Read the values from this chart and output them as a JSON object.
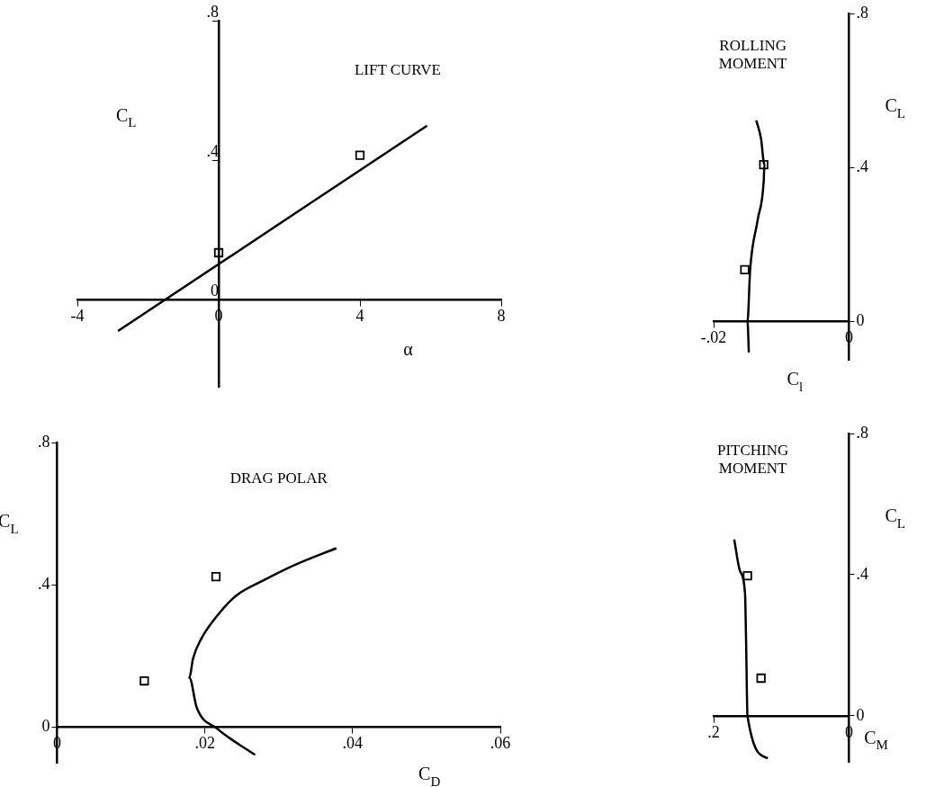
{
  "chart_data": [
    {
      "type": "line",
      "title": "LIFT CURVE",
      "xlabel": "α",
      "ylabel": "C$_{L}$",
      "xlim": [
        -4,
        8
      ],
      "ylim": [
        -0.25,
        0.8
      ],
      "xticks": [
        -4,
        0,
        4,
        8
      ],
      "yticks": [
        {
          "value": 0,
          "label": "0"
        },
        {
          "value": 0.4,
          "label": ".4"
        },
        {
          "value": 0.8,
          "label": ".8"
        }
      ],
      "grid": false,
      "legend": false,
      "series": [
        {
          "type": "line",
          "color": "#000000",
          "marker": "none",
          "x": [
            -2.85,
            5.9
          ],
          "values": [
            -0.09,
            0.5
          ]
        },
        {
          "type": "scatter",
          "color": "#000000",
          "marker": "square",
          "x": [
            0,
            4
          ],
          "values": [
            0.135,
            0.415
          ]
        }
      ]
    },
    {
      "type": "line",
      "title": "DRAG POLAR",
      "xlabel": "C$_{D}$",
      "ylabel": "C$_{L}$",
      "xlim": [
        0,
        0.06
      ],
      "ylim": [
        -0.1,
        0.8
      ],
      "xticks": [
        {
          "value": 0,
          "label": "0"
        },
        {
          "value": 0.02,
          "label": ".02"
        },
        {
          "value": 0.04,
          "label": ".04"
        },
        {
          "value": 0.06,
          "label": ".06"
        }
      ],
      "yticks": [
        {
          "value": 0,
          "label": "0"
        },
        {
          "value": 0.4,
          "label": ".4"
        },
        {
          "value": 0.8,
          "label": ".8"
        }
      ],
      "grid": false,
      "legend": false,
      "series": [
        {
          "type": "line",
          "color": "#000000",
          "marker": "none",
          "x": [
            0.0268,
            0.0217,
            0.0189,
            0.0179,
            0.0184,
            0.0195,
            0.0217,
            0.0242,
            0.0279,
            0.0323,
            0.0378
          ],
          "values": [
            -0.078,
            -0.005,
            0.055,
            0.139,
            0.193,
            0.248,
            0.314,
            0.369,
            0.412,
            0.457,
            0.503
          ]
        },
        {
          "type": "scatter",
          "color": "#000000",
          "marker": "square",
          "x": [
            0.0118,
            0.0215
          ],
          "values": [
            0.13,
            0.423
          ]
        }
      ]
    },
    {
      "type": "line",
      "title": "ROLLING MOMENT",
      "xlabel": "C$_{l}$",
      "ylabel": "C$_{L}$",
      "xlim": [
        -0.02,
        0
      ],
      "ylim": [
        -0.1,
        0.8
      ],
      "xticks": [
        {
          "value": -0.02,
          "label": "-.02"
        },
        {
          "value": 0,
          "label": "0"
        }
      ],
      "yticks": [
        {
          "value": 0,
          "label": "0"
        },
        {
          "value": 0.4,
          "label": ".4"
        },
        {
          "value": 0.8,
          "label": ".8"
        }
      ],
      "grid": false,
      "legend": false,
      "series": [
        {
          "type": "line",
          "color": "#000000",
          "marker": "none",
          "x": [
            -0.0137,
            -0.013,
            -0.0125,
            -0.0126,
            -0.0135,
            -0.0146,
            -0.015,
            -0.0148
          ],
          "values": [
            0.522,
            0.475,
            0.407,
            0.365,
            0.263,
            0.136,
            0,
            -0.081
          ]
        },
        {
          "type": "scatter",
          "color": "#000000",
          "marker": "square",
          "x": [
            -0.0154,
            -0.0126
          ],
          "values": [
            0.134,
            0.407
          ]
        }
      ]
    },
    {
      "type": "line",
      "title": "PITCHING MOMENT",
      "xlabel": "C$_{M}$",
      "ylabel": "C$_{L}$",
      "xlim": [
        0.2,
        0
      ],
      "ylim": [
        -0.13,
        0.8
      ],
      "xticks": [
        {
          "value": 0.2,
          "label": ".2"
        },
        {
          "value": 0,
          "label": "0"
        }
      ],
      "yticks": [
        {
          "value": 0,
          "label": "0"
        },
        {
          "value": 0.4,
          "label": ".4"
        },
        {
          "value": 0.8,
          "label": ".8"
        }
      ],
      "grid": false,
      "legend": false,
      "series": [
        {
          "type": "line",
          "color": "#000000",
          "marker": "none",
          "x": [
            0.1696,
            0.161,
            0.1536,
            0.152,
            0.15,
            0.12
          ],
          "values": [
            0.5,
            0.41,
            0.346,
            0.205,
            0,
            -0.12
          ]
        },
        {
          "type": "scatter",
          "color": "#000000",
          "marker": "square",
          "x": [
            0.13,
            0.15
          ],
          "values": [
            0.107,
            0.397
          ]
        }
      ]
    }
  ]
}
